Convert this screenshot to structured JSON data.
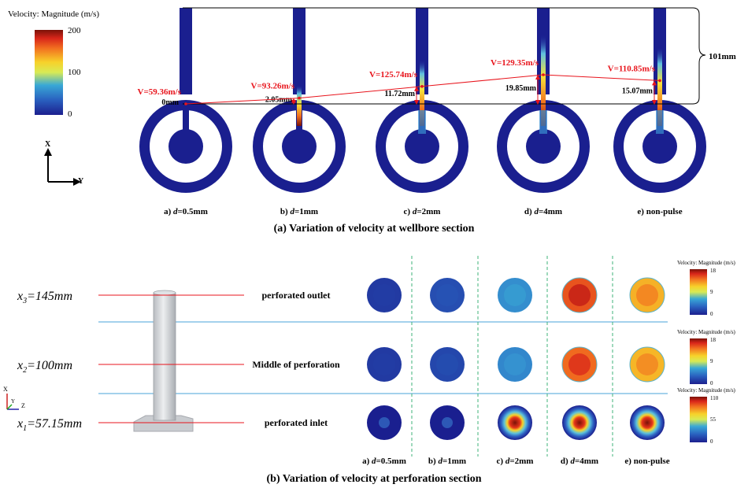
{
  "panel_a": {
    "legend": {
      "title": "Velocity: Magnitude (m/s)",
      "ticks": [
        "200",
        "100",
        "0"
      ]
    },
    "axes": {
      "x": "X",
      "y": "Y"
    },
    "height_label": "101mm",
    "cases": [
      {
        "label_prefix": "a) ",
        "label_var": "d",
        "label_value": "=0.5mm",
        "velocity": "V=59.36m/s",
        "depth": "0mm",
        "jet": 0
      },
      {
        "label_prefix": "b) ",
        "label_var": "d",
        "label_value": "=1mm",
        "velocity": "V=93.26m/s",
        "depth": "2.05mm",
        "jet": 0.2
      },
      {
        "label_prefix": "c) ",
        "label_var": "d",
        "label_value": "=2mm",
        "velocity": "V=125.74m/s",
        "depth": "11.72mm",
        "jet": 0.6
      },
      {
        "label_prefix": "d) ",
        "label_var": "d",
        "label_value": "=4mm",
        "velocity": "V=129.35m/s",
        "depth": "19.85mm",
        "jet": 1
      },
      {
        "label_prefix": "e) ",
        "label_var": "",
        "label_value": "non-pulse",
        "velocity": "V=110.85m/s",
        "depth": "15.07mm",
        "jet": 0.8
      }
    ],
    "caption": "(a)  Variation of velocity at wellbore section"
  },
  "panel_b": {
    "rows": [
      {
        "pos_var": "x",
        "pos_sub": "3",
        "pos_value": "=145mm",
        "label": "perforated outlet",
        "legend_ticks": [
          "18",
          "9",
          "0"
        ],
        "fills": [
          0.08,
          0.14,
          0.32,
          0.92,
          0.75
        ]
      },
      {
        "pos_var": "x",
        "pos_sub": "2",
        "pos_value": "=100mm",
        "label": "Middle of perforation",
        "legend_ticks": [
          "18",
          "9",
          "0"
        ],
        "fills": [
          0.08,
          0.12,
          0.3,
          0.88,
          0.74
        ]
      },
      {
        "pos_var": "x",
        "pos_sub": "1",
        "pos_value": "=57.15mm",
        "label": "perforated inlet",
        "legend_ticks": [
          "110",
          "55",
          "0"
        ],
        "fills": [
          0.06,
          0.1,
          0.9,
          0.95,
          0.92
        ]
      }
    ],
    "legend_title": "Velocity: Magnitude (m/s)",
    "axes": {
      "x": "X",
      "y": "Y",
      "z": "Z"
    },
    "columns": [
      {
        "prefix": "a) ",
        "var": "d",
        "value": "=0.5mm"
      },
      {
        "prefix": "b) ",
        "var": "d",
        "value": "=1mm"
      },
      {
        "prefix": "c) ",
        "var": "d",
        "value": "=2mm"
      },
      {
        "prefix": "d) ",
        "var": "d",
        "value": "=4mm"
      },
      {
        "prefix": "e) ",
        "var": "",
        "value": "non-pulse"
      }
    ],
    "caption": "(b)  Variation of velocity at perforation section"
  },
  "colors": {
    "field_low": "#1a1f8f",
    "annotation": "#e8141c",
    "divider_blue": "#4aa3d8",
    "divider_green": "#3fb37a"
  }
}
